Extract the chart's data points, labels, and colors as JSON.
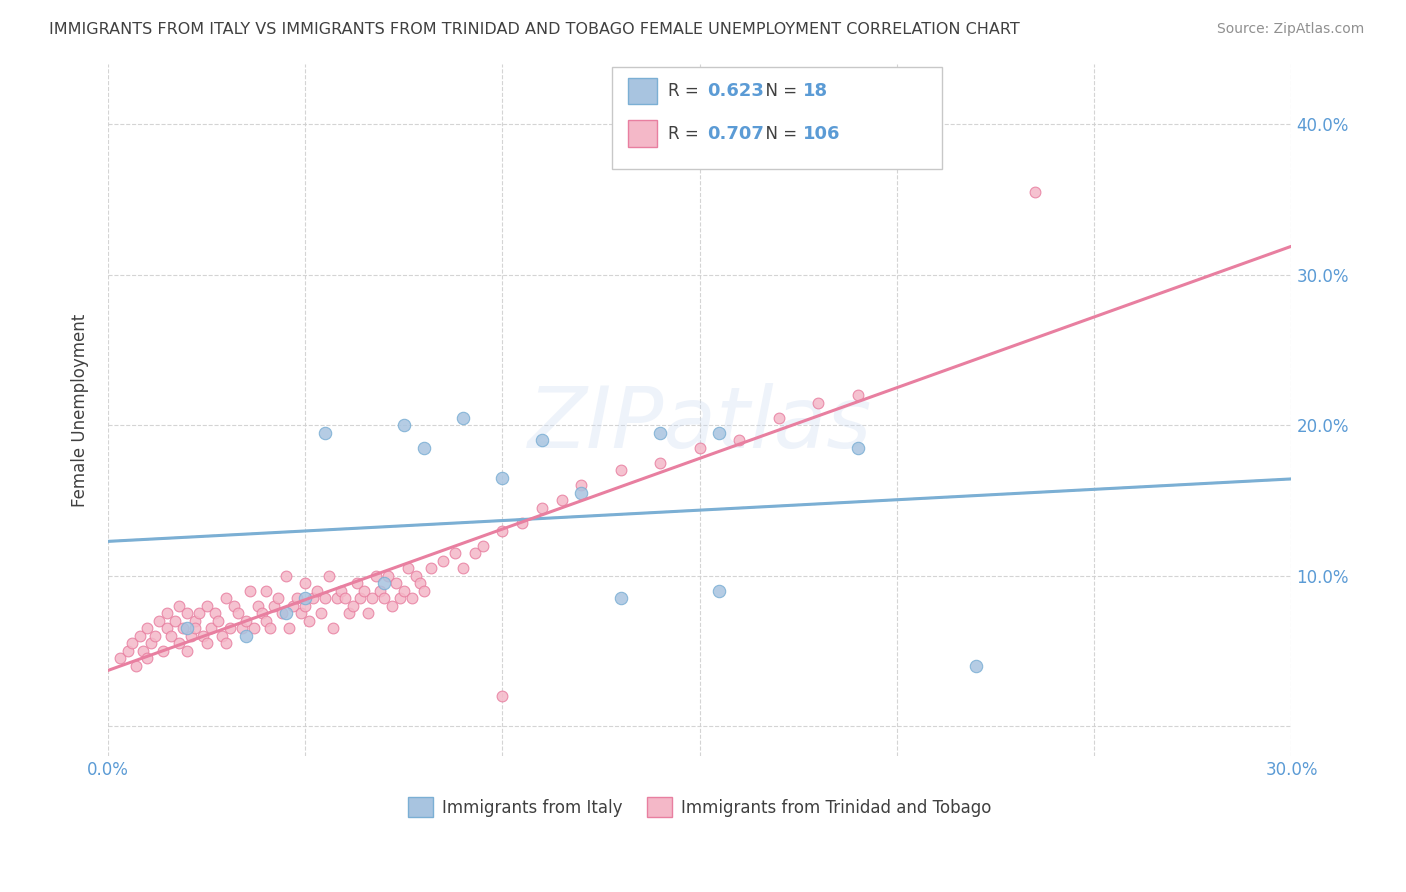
{
  "title": "IMMIGRANTS FROM ITALY VS IMMIGRANTS FROM TRINIDAD AND TOBAGO FEMALE UNEMPLOYMENT CORRELATION CHART",
  "source": "Source: ZipAtlas.com",
  "ylabel": "Female Unemployment",
  "xlim": [
    0.0,
    0.3
  ],
  "ylim": [
    -0.02,
    0.44
  ],
  "xticks": [
    0.0,
    0.05,
    0.1,
    0.15,
    0.2,
    0.25,
    0.3
  ],
  "xtick_labels": [
    "0.0%",
    "",
    "",
    "",
    "",
    "",
    "30.0%"
  ],
  "yticks": [
    0.0,
    0.1,
    0.2,
    0.3,
    0.4
  ],
  "ytick_labels": [
    "",
    "10.0%",
    "20.0%",
    "30.0%",
    "40.0%"
  ],
  "italy_color": "#a8c4e0",
  "italy_edge": "#7bafd4",
  "tt_color": "#f4b8c8",
  "tt_edge": "#e87fa0",
  "italy_R": 0.623,
  "italy_N": 18,
  "tt_R": 0.707,
  "tt_N": 106,
  "italy_x": [
    0.02,
    0.035,
    0.045,
    0.05,
    0.055,
    0.07,
    0.075,
    0.08,
    0.09,
    0.1,
    0.11,
    0.12,
    0.13,
    0.14,
    0.155,
    0.19,
    0.22,
    0.155
  ],
  "italy_y": [
    0.065,
    0.06,
    0.075,
    0.085,
    0.195,
    0.095,
    0.2,
    0.185,
    0.205,
    0.165,
    0.19,
    0.155,
    0.085,
    0.195,
    0.09,
    0.185,
    0.04,
    0.195
  ],
  "tt_x": [
    0.003,
    0.005,
    0.006,
    0.007,
    0.008,
    0.009,
    0.01,
    0.01,
    0.011,
    0.012,
    0.013,
    0.014,
    0.015,
    0.015,
    0.016,
    0.017,
    0.018,
    0.018,
    0.019,
    0.02,
    0.02,
    0.021,
    0.022,
    0.022,
    0.023,
    0.024,
    0.025,
    0.025,
    0.026,
    0.027,
    0.028,
    0.029,
    0.03,
    0.03,
    0.031,
    0.032,
    0.033,
    0.034,
    0.035,
    0.036,
    0.037,
    0.038,
    0.039,
    0.04,
    0.04,
    0.041,
    0.042,
    0.043,
    0.044,
    0.045,
    0.046,
    0.047,
    0.048,
    0.049,
    0.05,
    0.05,
    0.051,
    0.052,
    0.053,
    0.054,
    0.055,
    0.056,
    0.057,
    0.058,
    0.059,
    0.06,
    0.061,
    0.062,
    0.063,
    0.064,
    0.065,
    0.066,
    0.067,
    0.068,
    0.069,
    0.07,
    0.071,
    0.072,
    0.073,
    0.074,
    0.075,
    0.076,
    0.077,
    0.078,
    0.079,
    0.08,
    0.082,
    0.085,
    0.088,
    0.09,
    0.093,
    0.095,
    0.1,
    0.105,
    0.11,
    0.115,
    0.12,
    0.13,
    0.14,
    0.15,
    0.16,
    0.17,
    0.18,
    0.19,
    0.235,
    0.1
  ],
  "tt_y": [
    0.045,
    0.05,
    0.055,
    0.04,
    0.06,
    0.05,
    0.045,
    0.065,
    0.055,
    0.06,
    0.07,
    0.05,
    0.065,
    0.075,
    0.06,
    0.07,
    0.055,
    0.08,
    0.065,
    0.05,
    0.075,
    0.06,
    0.07,
    0.065,
    0.075,
    0.06,
    0.055,
    0.08,
    0.065,
    0.075,
    0.07,
    0.06,
    0.055,
    0.085,
    0.065,
    0.08,
    0.075,
    0.065,
    0.07,
    0.09,
    0.065,
    0.08,
    0.075,
    0.07,
    0.09,
    0.065,
    0.08,
    0.085,
    0.075,
    0.1,
    0.065,
    0.08,
    0.085,
    0.075,
    0.08,
    0.095,
    0.07,
    0.085,
    0.09,
    0.075,
    0.085,
    0.1,
    0.065,
    0.085,
    0.09,
    0.085,
    0.075,
    0.08,
    0.095,
    0.085,
    0.09,
    0.075,
    0.085,
    0.1,
    0.09,
    0.085,
    0.1,
    0.08,
    0.095,
    0.085,
    0.09,
    0.105,
    0.085,
    0.1,
    0.095,
    0.09,
    0.105,
    0.11,
    0.115,
    0.105,
    0.115,
    0.12,
    0.13,
    0.135,
    0.145,
    0.15,
    0.16,
    0.17,
    0.175,
    0.185,
    0.19,
    0.205,
    0.215,
    0.22,
    0.355,
    0.02
  ],
  "watermark_text": "ZIPatlas",
  "bg_color": "#ffffff",
  "grid_color": "#d0d0d0",
  "title_color": "#404040",
  "tick_color": "#5b9bd5",
  "source_color": "#909090",
  "legend_label_italy": "Immigrants from Italy",
  "legend_label_tt": "Immigrants from Trinidad and Tobago"
}
